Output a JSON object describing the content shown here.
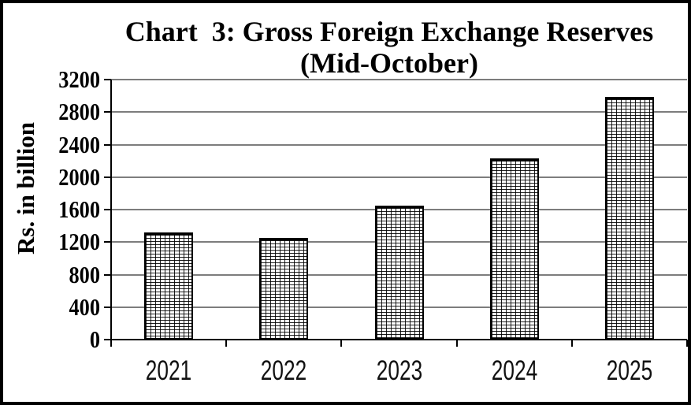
{
  "chart_data": {
    "type": "bar",
    "title": "Chart  3: Gross Foreign Exchange Reserves",
    "subtitle": "(Mid-October)",
    "ylabel": "Rs. in billion",
    "xlabel": "",
    "categories": [
      "2021",
      "2022",
      "2023",
      "2024",
      "2025"
    ],
    "values": [
      1320,
      1250,
      1645,
      2230,
      2990
    ],
    "yticks": [
      0,
      400,
      800,
      1200,
      1600,
      2000,
      2400,
      2800,
      3200
    ],
    "ylim": [
      0,
      3200
    ],
    "grid": true,
    "legend": false,
    "bar_fill_pattern": "crosshatch",
    "colors": {
      "bar_pattern": "#000000",
      "bar_background": "#ffffff",
      "gridline": "#7d7d7d",
      "axis": "#000000",
      "text": "#000000",
      "page_border": "#000000"
    }
  }
}
